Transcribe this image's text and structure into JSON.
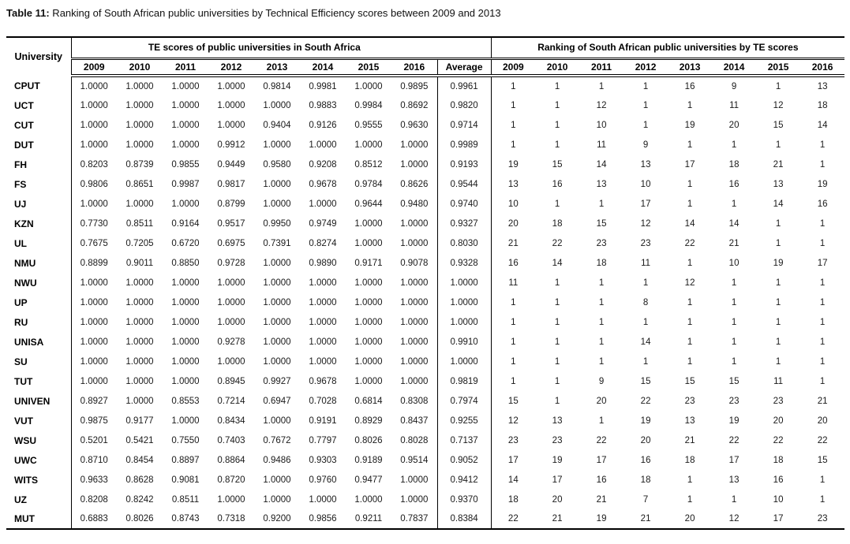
{
  "caption": {
    "label": "Table 11:",
    "text": " Ranking of South African public universities by Technical Efficiency scores between 2009 and 2013"
  },
  "table": {
    "university_header": "University",
    "group_headers": {
      "te": "TE scores of public universities in South Africa",
      "ranking": "Ranking of South African public universities by TE scores"
    },
    "te_years": [
      "2009",
      "2010",
      "2011",
      "2012",
      "2013",
      "2014",
      "2015",
      "2016"
    ],
    "average_header": "Average",
    "rank_years": [
      "2009",
      "2010",
      "2011",
      "2012",
      "2013",
      "2014",
      "2015",
      "2016"
    ],
    "rows": [
      {
        "university": "CPUT",
        "te": [
          "1.0000",
          "1.0000",
          "1.0000",
          "1.0000",
          "0.9814",
          "0.9981",
          "1.0000",
          "0.9895"
        ],
        "average": "0.9961",
        "ranks": [
          "1",
          "1",
          "1",
          "1",
          "16",
          "9",
          "1",
          "13"
        ]
      },
      {
        "university": "UCT",
        "te": [
          "1.0000",
          "1.0000",
          "1.0000",
          "1.0000",
          "1.0000",
          "0.9883",
          "0.9984",
          "0.8692"
        ],
        "average": "0.9820",
        "ranks": [
          "1",
          "1",
          "12",
          "1",
          "1",
          "11",
          "12",
          "18"
        ]
      },
      {
        "university": "CUT",
        "te": [
          "1.0000",
          "1.0000",
          "1.0000",
          "1.0000",
          "0.9404",
          "0.9126",
          "0.9555",
          "0.9630"
        ],
        "average": "0.9714",
        "ranks": [
          "1",
          "1",
          "10",
          "1",
          "19",
          "20",
          "15",
          "14"
        ]
      },
      {
        "university": "DUT",
        "te": [
          "1.0000",
          "1.0000",
          "1.0000",
          "0.9912",
          "1.0000",
          "1.0000",
          "1.0000",
          "1.0000"
        ],
        "average": "0.9989",
        "ranks": [
          "1",
          "1",
          "11",
          "9",
          "1",
          "1",
          "1",
          "1"
        ]
      },
      {
        "university": "FH",
        "te": [
          "0.8203",
          "0.8739",
          "0.9855",
          "0.9449",
          "0.9580",
          "0.9208",
          "0.8512",
          "1.0000"
        ],
        "average": "0.9193",
        "ranks": [
          "19",
          "15",
          "14",
          "13",
          "17",
          "18",
          "21",
          "1"
        ]
      },
      {
        "university": "FS",
        "te": [
          "0.9806",
          "0.8651",
          "0.9987",
          "0.9817",
          "1.0000",
          "0.9678",
          "0.9784",
          "0.8626"
        ],
        "average": "0.9544",
        "ranks": [
          "13",
          "16",
          "13",
          "10",
          "1",
          "16",
          "13",
          "19"
        ]
      },
      {
        "university": "UJ",
        "te": [
          "1.0000",
          "1.0000",
          "1.0000",
          "0.8799",
          "1.0000",
          "1.0000",
          "0.9644",
          "0.9480"
        ],
        "average": "0.9740",
        "ranks": [
          "10",
          "1",
          "1",
          "17",
          "1",
          "1",
          "14",
          "16"
        ]
      },
      {
        "university": "KZN",
        "te": [
          "0.7730",
          "0.8511",
          "0.9164",
          "0.9517",
          "0.9950",
          "0.9749",
          "1.0000",
          "1.0000"
        ],
        "average": "0.9327",
        "ranks": [
          "20",
          "18",
          "15",
          "12",
          "14",
          "14",
          "1",
          "1"
        ]
      },
      {
        "university": "UL",
        "te": [
          "0.7675",
          "0.7205",
          "0.6720",
          "0.6975",
          "0.7391",
          "0.8274",
          "1.0000",
          "1.0000"
        ],
        "average": "0.8030",
        "ranks": [
          "21",
          "22",
          "23",
          "23",
          "22",
          "21",
          "1",
          "1"
        ]
      },
      {
        "university": "NMU",
        "te": [
          "0.8899",
          "0.9011",
          "0.8850",
          "0.9728",
          "1.0000",
          "0.9890",
          "0.9171",
          "0.9078"
        ],
        "average": "0.9328",
        "ranks": [
          "16",
          "14",
          "18",
          "11",
          "1",
          "10",
          "19",
          "17"
        ]
      },
      {
        "university": "NWU",
        "te": [
          "1.0000",
          "1.0000",
          "1.0000",
          "1.0000",
          "1.0000",
          "1.0000",
          "1.0000",
          "1.0000"
        ],
        "average": "1.0000",
        "ranks": [
          "11",
          "1",
          "1",
          "1",
          "12",
          "1",
          "1",
          "1"
        ]
      },
      {
        "university": "UP",
        "te": [
          "1.0000",
          "1.0000",
          "1.0000",
          "1.0000",
          "1.0000",
          "1.0000",
          "1.0000",
          "1.0000"
        ],
        "average": "1.0000",
        "ranks": [
          "1",
          "1",
          "1",
          "8",
          "1",
          "1",
          "1",
          "1"
        ]
      },
      {
        "university": "RU",
        "te": [
          "1.0000",
          "1.0000",
          "1.0000",
          "1.0000",
          "1.0000",
          "1.0000",
          "1.0000",
          "1.0000"
        ],
        "average": "1.0000",
        "ranks": [
          "1",
          "1",
          "1",
          "1",
          "1",
          "1",
          "1",
          "1"
        ]
      },
      {
        "university": "UNISA",
        "te": [
          "1.0000",
          "1.0000",
          "1.0000",
          "0.9278",
          "1.0000",
          "1.0000",
          "1.0000",
          "1.0000"
        ],
        "average": "0.9910",
        "ranks": [
          "1",
          "1",
          "1",
          "14",
          "1",
          "1",
          "1",
          "1"
        ]
      },
      {
        "university": "SU",
        "te": [
          "1.0000",
          "1.0000",
          "1.0000",
          "1.0000",
          "1.0000",
          "1.0000",
          "1.0000",
          "1.0000"
        ],
        "average": "1.0000",
        "ranks": [
          "1",
          "1",
          "1",
          "1",
          "1",
          "1",
          "1",
          "1"
        ]
      },
      {
        "university": "TUT",
        "te": [
          "1.0000",
          "1.0000",
          "1.0000",
          "0.8945",
          "0.9927",
          "0.9678",
          "1.0000",
          "1.0000"
        ],
        "average": "0.9819",
        "ranks": [
          "1",
          "1",
          "9",
          "15",
          "15",
          "15",
          "11",
          "1"
        ]
      },
      {
        "university": "UNIVEN",
        "te": [
          "0.8927",
          "1.0000",
          "0.8553",
          "0.7214",
          "0.6947",
          "0.7028",
          "0.6814",
          "0.8308"
        ],
        "average": "0.7974",
        "ranks": [
          "15",
          "1",
          "20",
          "22",
          "23",
          "23",
          "23",
          "21"
        ]
      },
      {
        "university": "VUT",
        "te": [
          "0.9875",
          "0.9177",
          "1.0000",
          "0.8434",
          "1.0000",
          "0.9191",
          "0.8929",
          "0.8437"
        ],
        "average": "0.9255",
        "ranks": [
          "12",
          "13",
          "1",
          "19",
          "13",
          "19",
          "20",
          "20"
        ]
      },
      {
        "university": "WSU",
        "te": [
          "0.5201",
          "0.5421",
          "0.7550",
          "0.7403",
          "0.7672",
          "0.7797",
          "0.8026",
          "0.8028"
        ],
        "average": "0.7137",
        "ranks": [
          "23",
          "23",
          "22",
          "20",
          "21",
          "22",
          "22",
          "22"
        ]
      },
      {
        "university": "UWC",
        "te": [
          "0.8710",
          "0.8454",
          "0.8897",
          "0.8864",
          "0.9486",
          "0.9303",
          "0.9189",
          "0.9514"
        ],
        "average": "0.9052",
        "ranks": [
          "17",
          "19",
          "17",
          "16",
          "18",
          "17",
          "18",
          "15"
        ]
      },
      {
        "university": "WITS",
        "te": [
          "0.9633",
          "0.8628",
          "0.9081",
          "0.8720",
          "1.0000",
          "0.9760",
          "0.9477",
          "1.0000"
        ],
        "average": "0.9412",
        "ranks": [
          "14",
          "17",
          "16",
          "18",
          "1",
          "13",
          "16",
          "1"
        ]
      },
      {
        "university": "UZ",
        "te": [
          "0.8208",
          "0.8242",
          "0.8511",
          "1.0000",
          "1.0000",
          "1.0000",
          "1.0000",
          "1.0000"
        ],
        "average": "0.9370",
        "ranks": [
          "18",
          "20",
          "21",
          "7",
          "1",
          "1",
          "10",
          "1"
        ]
      },
      {
        "university": "MUT",
        "te": [
          "0.6883",
          "0.8026",
          "0.8743",
          "0.7318",
          "0.9200",
          "0.9856",
          "0.9211",
          "0.7837"
        ],
        "average": "0.8384",
        "ranks": [
          "22",
          "21",
          "19",
          "21",
          "20",
          "12",
          "17",
          "23"
        ]
      }
    ]
  }
}
